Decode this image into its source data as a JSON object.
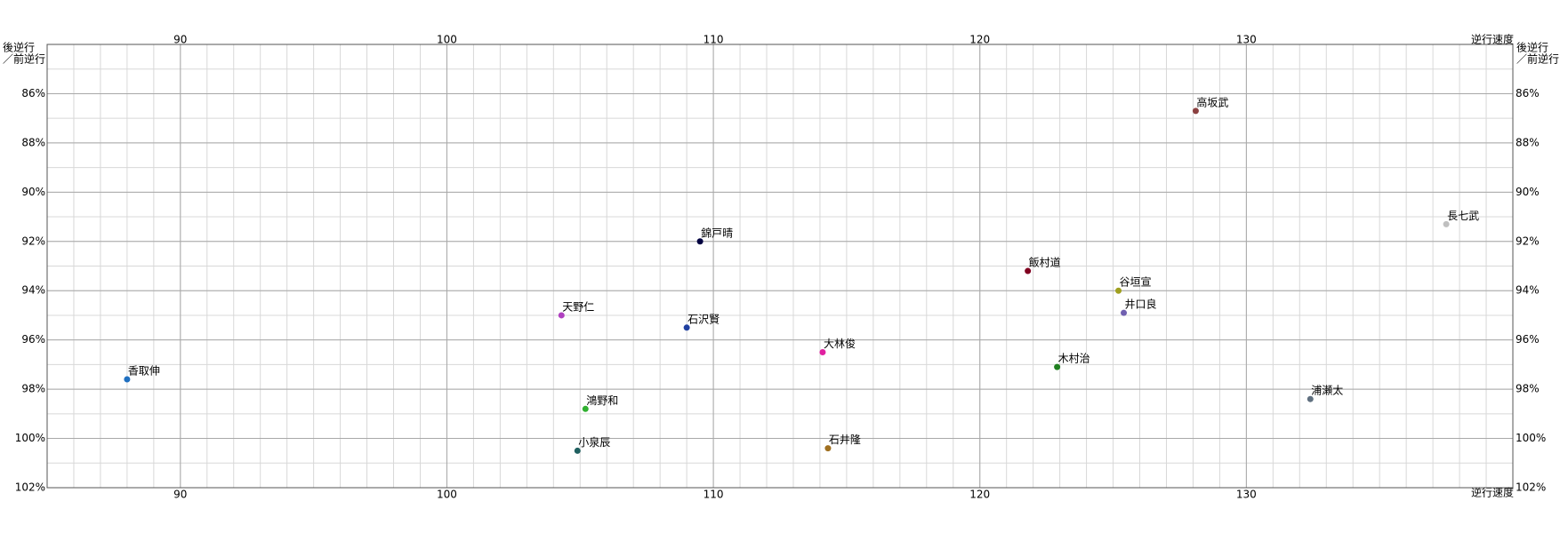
{
  "chart_data": {
    "type": "scatter",
    "x_label": "逆行速度",
    "y_label": [
      "後逆行",
      "／前逆行"
    ],
    "xlim": [
      85,
      140
    ],
    "xticks": [
      90,
      100,
      110,
      120,
      130
    ],
    "ylim": [
      84,
      102
    ],
    "y_inverted": true,
    "yticks": [
      {
        "value": 86,
        "label": "86%"
      },
      {
        "value": 88,
        "label": "88%"
      },
      {
        "value": 90,
        "label": "90%"
      },
      {
        "value": 92,
        "label": "92%"
      },
      {
        "value": 94,
        "label": "94%"
      },
      {
        "value": 96,
        "label": "96%"
      },
      {
        "value": 98,
        "label": "98%"
      },
      {
        "value": 100,
        "label": "100%"
      },
      {
        "value": 102,
        "label": "102%"
      }
    ],
    "grid": true,
    "series": [
      {
        "name": "高坂武",
        "color": "#8b4040",
        "x": [
          128.1
        ],
        "values": [
          86.7
        ]
      },
      {
        "name": "長七武",
        "color": "#c0c0c0",
        "x": [
          137.5
        ],
        "values": [
          91.3
        ]
      },
      {
        "name": "錦戸晴",
        "color": "#000040",
        "x": [
          109.5
        ],
        "values": [
          92.0
        ]
      },
      {
        "name": "飯村道",
        "color": "#800020",
        "x": [
          121.8
        ],
        "values": [
          93.2
        ]
      },
      {
        "name": "谷垣宣",
        "color": "#a0a020",
        "x": [
          125.2
        ],
        "values": [
          94.0
        ]
      },
      {
        "name": "井口良",
        "color": "#7060b0",
        "x": [
          125.4
        ],
        "values": [
          94.9
        ]
      },
      {
        "name": "天野仁",
        "color": "#b040c0",
        "x": [
          104.3
        ],
        "values": [
          95.0
        ]
      },
      {
        "name": "石沢賢",
        "color": "#2040a0",
        "x": [
          109.0
        ],
        "values": [
          95.5
        ]
      },
      {
        "name": "大林俊",
        "color": "#e020a0",
        "x": [
          114.1
        ],
        "values": [
          96.5
        ]
      },
      {
        "name": "木村治",
        "color": "#208020",
        "x": [
          122.9
        ],
        "values": [
          97.1
        ]
      },
      {
        "name": "香取伸",
        "color": "#2070c0",
        "x": [
          88.0
        ],
        "values": [
          97.6
        ]
      },
      {
        "name": "浦瀬太",
        "color": "#607080",
        "x": [
          132.4
        ],
        "values": [
          98.4
        ]
      },
      {
        "name": "鴻野和",
        "color": "#30b030",
        "x": [
          105.2
        ],
        "values": [
          98.8
        ]
      },
      {
        "name": "石井隆",
        "color": "#a07020",
        "x": [
          114.3
        ],
        "values": [
          100.4
        ]
      },
      {
        "name": "小泉辰",
        "color": "#206060",
        "x": [
          104.9
        ],
        "values": [
          100.5
        ]
      }
    ]
  }
}
